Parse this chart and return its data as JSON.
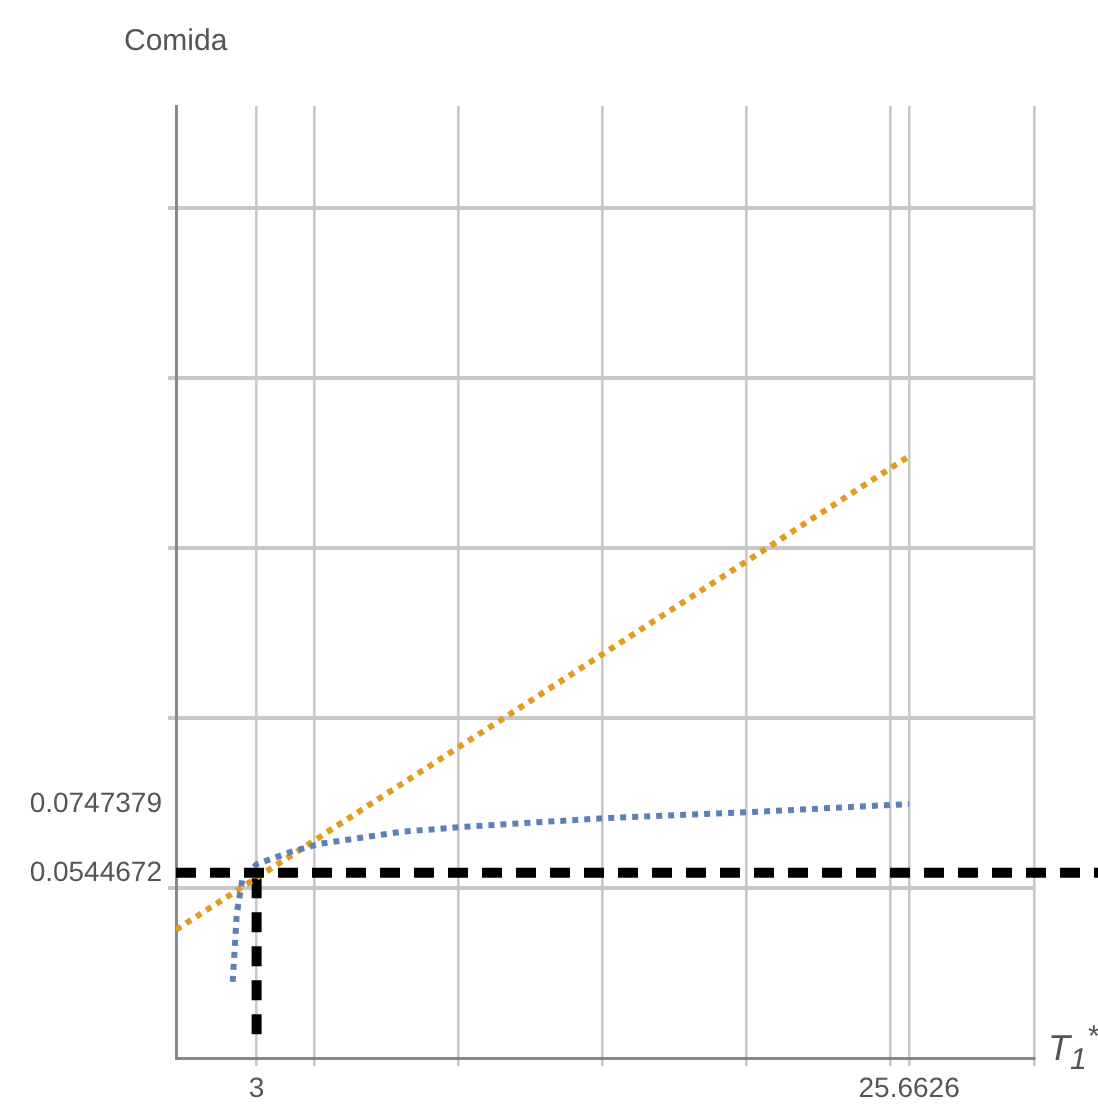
{
  "chart_data": {
    "type": "line",
    "ylabel": "Comida",
    "xlabel": "T$_{1}$$^{*}$",
    "xlim": [
      0.2,
      30
    ],
    "ylim": [
      0,
      0.28
    ],
    "xticks": [
      3,
      {
        "value": 5,
        "label": null
      },
      {
        "value": 10,
        "label": null
      },
      {
        "value": 15,
        "label": null
      },
      {
        "value": 20,
        "label": null
      },
      {
        "value": 25,
        "label": null
      },
      25.6626,
      {
        "value": 30,
        "label": null
      }
    ],
    "yticks": [
      {
        "value": 0.05,
        "label": null
      },
      0.0544672,
      0.0747379,
      {
        "value": 0.1,
        "label": null
      },
      {
        "value": 0.15,
        "label": null
      },
      {
        "value": 0.2,
        "label": null
      },
      {
        "value": 0.25,
        "label": null
      }
    ],
    "grid": true,
    "legend": false,
    "series": [
      {
        "color": "#5e81b5",
        "line_style": "dotted",
        "x": [
          2.17,
          2.31,
          2.5,
          3,
          4.18,
          5.2,
          8,
          10.2,
          15.2,
          20.1,
          25.6626
        ],
        "values": [
          0.0224,
          0.0424,
          0.0524,
          0.057,
          0.0606,
          0.063,
          0.0665,
          0.068,
          0.0706,
          0.0723,
          0.0747
        ]
      },
      {
        "color": "#e19c24",
        "line_style": "dotted",
        "x": [
          0.2,
          25.6626
        ],
        "values": [
          0.0377,
          0.177
        ]
      },
      {
        "color": "#000000",
        "line_style": "dashed",
        "x": [
          3,
          3
        ],
        "values": [
          0.007,
          0.0545
        ]
      }
    ],
    "ref_lines": [
      {
        "axis": "y",
        "value": 0.0544672,
        "color": "#000000",
        "line_style": "dashed"
      }
    ]
  }
}
